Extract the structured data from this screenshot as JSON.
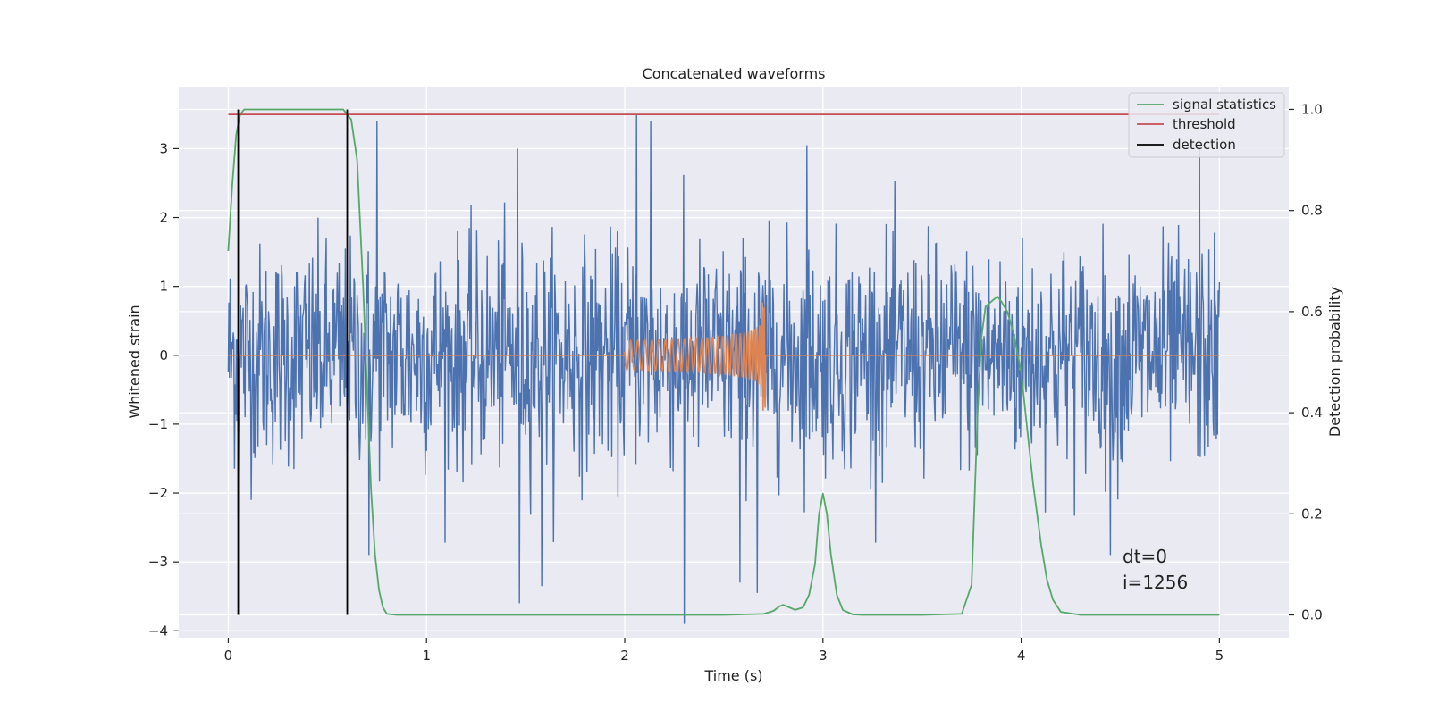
{
  "chart_data": {
    "type": "line",
    "title": "Concatenated waveforms",
    "xlabel": "Time (s)",
    "ylabel": "Whitened strain",
    "y2label": "Detection probability",
    "xlim": [
      -0.25,
      5.35
    ],
    "ylim": [
      -4.1,
      3.9
    ],
    "y2lim": [
      -0.045,
      1.045
    ],
    "xticks": [
      0,
      1,
      2,
      3,
      4,
      5
    ],
    "yticks": [
      -4,
      -3,
      -2,
      -1,
      0,
      1,
      2,
      3
    ],
    "y2ticks": [
      "0.0",
      "0.2",
      "0.4",
      "0.6",
      "0.8",
      "1.0"
    ],
    "grid": true,
    "legend_position": "top-right",
    "annotation": [
      "dt=0",
      "i=1256"
    ],
    "noise_series": {
      "axis": "left",
      "color": "#4c72b0",
      "x_range": [
        0,
        5
      ],
      "samples": 1600,
      "bulk_amplitude": 1.7,
      "spikes": [
        {
          "x": 2.06,
          "y": 3.5
        },
        {
          "x": 2.13,
          "y": 3.4
        },
        {
          "x": 0.75,
          "y": 3.4
        },
        {
          "x": 1.46,
          "y": 3.0
        },
        {
          "x": 2.92,
          "y": 3.05
        },
        {
          "x": 4.9,
          "y": 3.0
        },
        {
          "x": 2.3,
          "y": -3.9
        },
        {
          "x": 1.47,
          "y": -3.6
        },
        {
          "x": 1.58,
          "y": -3.35
        },
        {
          "x": 2.58,
          "y": -3.3
        },
        {
          "x": 2.67,
          "y": -3.45
        },
        {
          "x": 0.71,
          "y": -2.9
        },
        {
          "x": 4.45,
          "y": -2.9
        },
        {
          "x": 0.05,
          "y": -2.35
        }
      ]
    },
    "series": [
      {
        "name": "signal statistics",
        "axis": "right",
        "color": "#55a868",
        "x": [
          0.0,
          0.02,
          0.04,
          0.06,
          0.08,
          0.1,
          0.15,
          0.3,
          0.5,
          0.58,
          0.62,
          0.65,
          0.68,
          0.7,
          0.72,
          0.74,
          0.76,
          0.78,
          0.8,
          0.85,
          1.0,
          2.0,
          2.5,
          2.7,
          2.75,
          2.78,
          2.8,
          2.83,
          2.86,
          2.9,
          2.93,
          2.96,
          2.98,
          3.0,
          3.02,
          3.04,
          3.07,
          3.1,
          3.15,
          3.2,
          3.5,
          3.7,
          3.75,
          3.78,
          3.8,
          3.82,
          3.85,
          3.88,
          3.9,
          3.93,
          3.96,
          4.0,
          4.03,
          4.06,
          4.1,
          4.13,
          4.16,
          4.2,
          4.3,
          5.0
        ],
        "y": [
          0.72,
          0.85,
          0.95,
          0.99,
          1.0,
          1.0,
          1.0,
          1.0,
          1.0,
          1.0,
          0.98,
          0.9,
          0.65,
          0.45,
          0.25,
          0.12,
          0.05,
          0.015,
          0.002,
          0.0,
          0.0,
          0.0,
          0.0,
          0.002,
          0.008,
          0.017,
          0.02,
          0.015,
          0.01,
          0.015,
          0.04,
          0.1,
          0.2,
          0.24,
          0.2,
          0.12,
          0.04,
          0.01,
          0.001,
          0.0,
          0.0,
          0.002,
          0.06,
          0.4,
          0.55,
          0.61,
          0.62,
          0.63,
          0.62,
          0.6,
          0.56,
          0.48,
          0.37,
          0.26,
          0.14,
          0.07,
          0.03,
          0.006,
          0.0,
          0.0
        ]
      },
      {
        "name": "threshold",
        "axis": "right",
        "color": "#c44e52",
        "x": [
          0,
          5
        ],
        "y": [
          0.99,
          0.99
        ]
      },
      {
        "name": "detection",
        "axis": "right",
        "color": "#000000",
        "segments": [
          {
            "x": 0.05,
            "y": [
              0,
              1
            ]
          },
          {
            "x": 0.6,
            "y": [
              0,
              1
            ]
          }
        ]
      }
    ],
    "chirp_series": {
      "axis": "left",
      "color": "#dd8452",
      "x_range": [
        0,
        5
      ],
      "chirp_start": 2.0,
      "chirp_end": 2.71,
      "peak_amplitude": 1.0
    }
  }
}
